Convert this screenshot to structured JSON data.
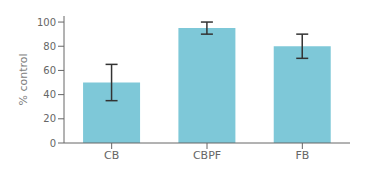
{
  "chart_data": {
    "type": "bar",
    "categories": [
      "CB",
      "CBPF",
      "FB"
    ],
    "values": [
      50,
      95,
      80
    ],
    "errors": [
      15,
      5,
      10
    ],
    "color": "#7EC8D8",
    "ylabel": "% control",
    "ylim": [
      0,
      105
    ],
    "yticks": [
      0,
      20,
      40,
      60,
      80,
      100
    ]
  }
}
